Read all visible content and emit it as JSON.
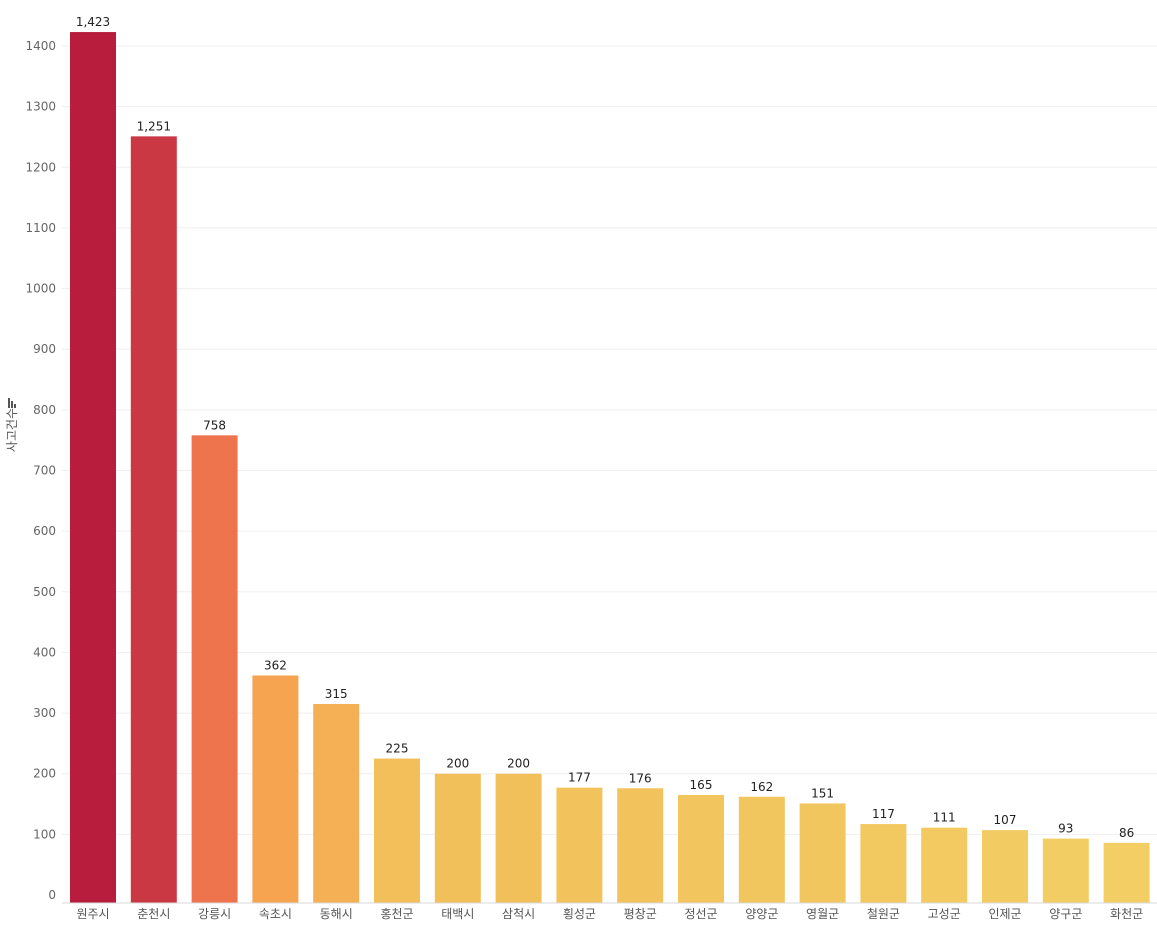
{
  "chart_data": {
    "type": "bar",
    "title": "",
    "xlabel": "",
    "ylabel": "사고건수",
    "ylabel_icon": "sort-descending-icon",
    "ylim": [
      0,
      1400
    ],
    "yticks": [
      0,
      100,
      200,
      300,
      400,
      500,
      600,
      700,
      800,
      900,
      1000,
      1100,
      1200,
      1300,
      1400
    ],
    "grid": true,
    "categories": [
      "원주시",
      "춘천시",
      "강릉시",
      "속초시",
      "동해시",
      "홍천군",
      "태백시",
      "삼척시",
      "횡성군",
      "평창군",
      "정선군",
      "양양군",
      "영월군",
      "철원군",
      "고성군",
      "인제군",
      "양구군",
      "화천군"
    ],
    "values": [
      1423,
      1251,
      758,
      362,
      315,
      225,
      200,
      200,
      177,
      176,
      165,
      162,
      151,
      117,
      111,
      107,
      93,
      86
    ],
    "value_labels": [
      "1,423",
      "1,251",
      "758",
      "362",
      "315",
      "225",
      "200",
      "200",
      "177",
      "176",
      "165",
      "162",
      "151",
      "117",
      "111",
      "107",
      "93",
      "86"
    ],
    "colors": [
      "#b81d3e",
      "#c93843",
      "#ee744d",
      "#f6a44f",
      "#f5b056",
      "#f2bf5a",
      "#f2c05b",
      "#f2c05b",
      "#f2c35d",
      "#f2c35d",
      "#f2c55e",
      "#f2c65e",
      "#f2c65f",
      "#f2c960",
      "#f2ca61",
      "#f2cb62",
      "#f2cd63",
      "#f2ce64"
    ]
  }
}
